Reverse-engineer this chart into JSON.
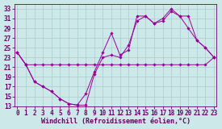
{
  "xlabel": "Windchill (Refroidissement éolien,°C)",
  "background_color": "#cce8e8",
  "grid_color": "#aacccc",
  "line_color": "#990099",
  "x_ticks": [
    0,
    1,
    2,
    3,
    4,
    5,
    6,
    7,
    8,
    9,
    10,
    11,
    12,
    13,
    14,
    15,
    16,
    17,
    18,
    19,
    20,
    21,
    22,
    23
  ],
  "y_ticks": [
    13,
    15,
    17,
    19,
    21,
    23,
    25,
    27,
    29,
    31,
    33
  ],
  "ylim": [
    13,
    34
  ],
  "xlim": [
    -0.3,
    23.3
  ],
  "series1_x": [
    0,
    1,
    2,
    3,
    4,
    5,
    6,
    7,
    8,
    9,
    10,
    11,
    12,
    13,
    14,
    15,
    16,
    17,
    18,
    19,
    20,
    21,
    22,
    23
  ],
  "series1_y": [
    24.0,
    21.5,
    21.5,
    21.5,
    21.5,
    21.5,
    21.5,
    21.5,
    21.5,
    21.5,
    21.5,
    21.5,
    21.5,
    21.5,
    21.5,
    21.5,
    21.5,
    21.5,
    21.5,
    21.5,
    21.5,
    21.5,
    21.5,
    23.0
  ],
  "series2_x": [
    0,
    1,
    2,
    3,
    4,
    5,
    6,
    7,
    8,
    9,
    10,
    11,
    12,
    13,
    14,
    15,
    16,
    17,
    18,
    19,
    20,
    21,
    22,
    23
  ],
  "series2_y": [
    24.0,
    21.5,
    18.0,
    17.0,
    16.0,
    14.5,
    13.5,
    13.2,
    13.2,
    19.5,
    23.0,
    23.5,
    23.0,
    25.5,
    30.5,
    31.5,
    30.0,
    30.5,
    32.5,
    31.5,
    31.5,
    26.5,
    25.0,
    23.0
  ],
  "series3_x": [
    0,
    1,
    2,
    3,
    4,
    5,
    6,
    7,
    8,
    9,
    10,
    11,
    12,
    13,
    14,
    15,
    16,
    17,
    18,
    19,
    20,
    21,
    22,
    23
  ],
  "series3_y": [
    24.0,
    21.5,
    18.0,
    17.0,
    16.0,
    14.5,
    13.5,
    13.2,
    15.5,
    20.0,
    24.0,
    28.0,
    23.5,
    24.5,
    31.5,
    31.5,
    30.0,
    31.0,
    33.0,
    31.5,
    29.0,
    26.5,
    25.0,
    23.0
  ],
  "xlabel_fontsize": 6,
  "tick_fontsize": 5.5
}
